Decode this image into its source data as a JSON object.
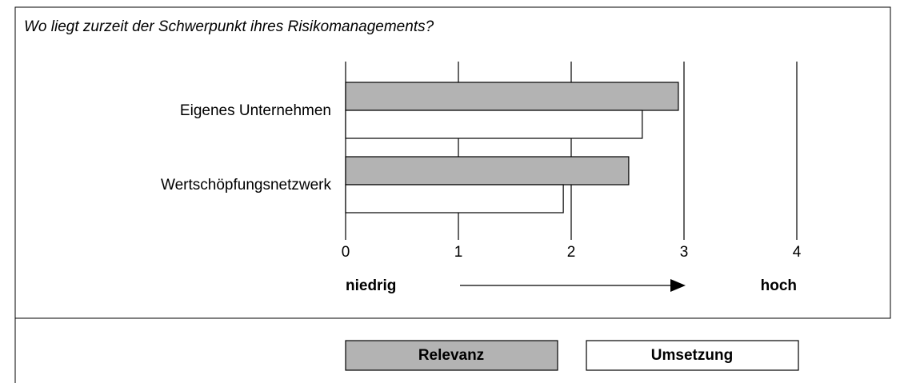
{
  "chart_data": {
    "type": "barh",
    "title": "Wo liegt zurzeit der Schwerpunkt ihres Risikomanagements?",
    "categories": [
      "Eigenes Unternehmen",
      "Wertschöpfungsnetzwerk"
    ],
    "series": [
      {
        "name": "Relevanz",
        "color": "#b3b3b3",
        "values": [
          2.95,
          2.51
        ]
      },
      {
        "name": "Umsetzung",
        "color": "#ffffff",
        "values": [
          2.63,
          1.93
        ]
      }
    ],
    "xlim": [
      0,
      4
    ],
    "xticks": [
      0,
      1,
      2,
      3,
      4
    ],
    "grid": true,
    "annotations": [
      "niedrig",
      "hoch"
    ]
  }
}
